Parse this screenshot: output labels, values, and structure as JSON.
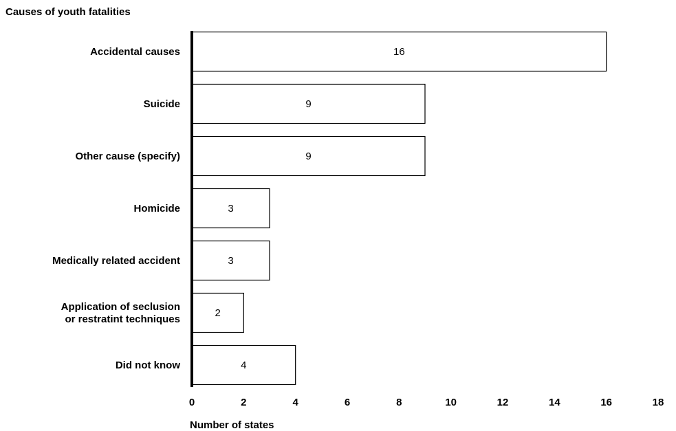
{
  "chart_data": {
    "type": "bar",
    "orientation": "horizontal",
    "title": "Causes of youth fatalities",
    "xlabel": "Number of states",
    "ylabel": "",
    "categories": [
      [
        "Accidental causes"
      ],
      [
        "Suicide"
      ],
      [
        "Other cause (specify)"
      ],
      [
        "Homicide"
      ],
      [
        "Medically related accident"
      ],
      [
        "Application of seclusion",
        "or restratint techniques"
      ],
      [
        "Did not know"
      ]
    ],
    "values": [
      16,
      9,
      9,
      3,
      3,
      2,
      4
    ],
    "xlim": [
      0,
      18
    ],
    "xticks": [
      0,
      2,
      4,
      6,
      8,
      10,
      12,
      14,
      16,
      18
    ],
    "grid": false,
    "legend": "none",
    "colors": {
      "bar_fill": "#ffffff",
      "bar_stroke": "#000000",
      "axis": "#000000"
    }
  }
}
